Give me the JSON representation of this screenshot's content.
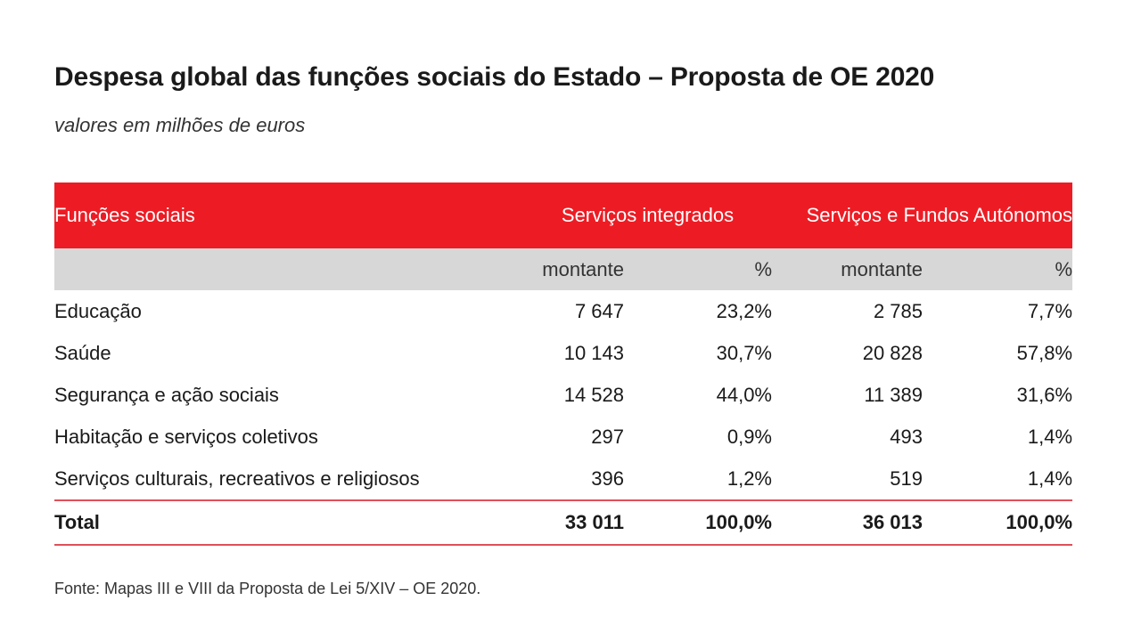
{
  "title": "Despesa global das funções sociais do Estado – Proposta de OE 2020",
  "subtitle": "valores em milhões de euros",
  "colors": {
    "header_red": "#ed1c24",
    "header_grey": "#d7d7d7",
    "rule_red": "#e0505a"
  },
  "table": {
    "headers": {
      "col1": "Funções sociais",
      "group1": "Serviços integrados",
      "group2": "Serviços e Fundos Autónomos"
    },
    "subheaders": {
      "amount1": "montante",
      "pct1": "%",
      "amount2": "montante",
      "pct2": "%"
    },
    "rows": [
      {
        "label": "Educação",
        "si_amount": "7 647",
        "si_pct": "23,2%",
        "sfa_amount": "2 785",
        "sfa_pct": "7,7%"
      },
      {
        "label": "Saúde",
        "si_amount": "10 143",
        "si_pct": "30,7%",
        "sfa_amount": "20 828",
        "sfa_pct": "57,8%"
      },
      {
        "label": "Segurança e ação sociais",
        "si_amount": "14 528",
        "si_pct": "44,0%",
        "sfa_amount": "11 389",
        "sfa_pct": "31,6%"
      },
      {
        "label": "Habitação e serviços coletivos",
        "si_amount": "297",
        "si_pct": "0,9%",
        "sfa_amount": "493",
        "sfa_pct": "1,4%"
      },
      {
        "label": "Serviços culturais, recreativos e religiosos",
        "si_amount": "396",
        "si_pct": "1,2%",
        "sfa_amount": "519",
        "sfa_pct": "1,4%"
      }
    ],
    "total": {
      "label": "Total",
      "si_amount": "33 011",
      "si_pct": "100,0%",
      "sfa_amount": "36 013",
      "sfa_pct": "100,0%"
    }
  },
  "source": "Fonte: Mapas III e VIII da Proposta de Lei 5/XIV – OE 2020."
}
